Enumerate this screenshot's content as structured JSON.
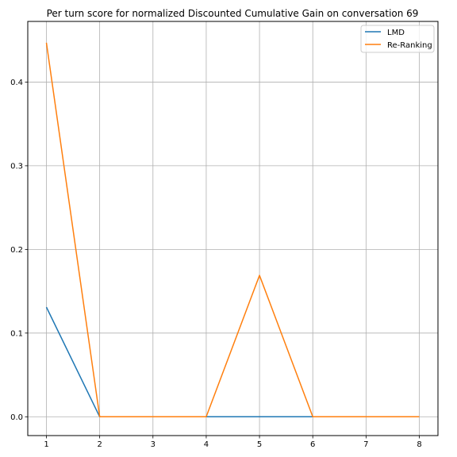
{
  "chart_data": {
    "type": "line",
    "title": "Per turn score for normalized Discounted Cumulative Gain on conversation 69",
    "xlabel": "",
    "ylabel": "",
    "x": [
      1,
      2,
      3,
      4,
      5,
      6,
      7,
      8
    ],
    "x_ticks": [
      "1",
      "2",
      "3",
      "4",
      "5",
      "6",
      "7",
      "8"
    ],
    "y_ticks": [
      "0.0",
      "0.1",
      "0.2",
      "0.3",
      "0.4"
    ],
    "xlim": [
      0.65,
      8.35
    ],
    "ylim": [
      -0.0225,
      0.4725
    ],
    "grid": true,
    "legend_position": "top-right",
    "series": [
      {
        "name": "LMD",
        "color": "#1f77b4",
        "values": [
          0.131,
          0.0,
          0.0,
          0.0,
          0.0,
          0.0,
          0.0,
          0.0
        ]
      },
      {
        "name": "Re-Ranking",
        "color": "#ff7f0e",
        "values": [
          0.447,
          0.0,
          0.0,
          0.0,
          0.169,
          0.0,
          0.0,
          0.0
        ]
      }
    ]
  }
}
